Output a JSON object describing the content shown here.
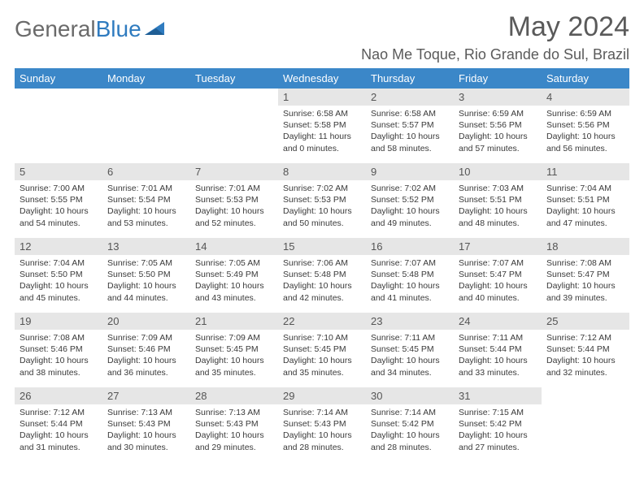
{
  "logo": {
    "text_gray": "General",
    "text_blue": "Blue"
  },
  "title": "May 2024",
  "location": "Nao Me Toque, Rio Grande do Sul, Brazil",
  "colors": {
    "header_bg": "#3b87c8",
    "header_fg": "#ffffff",
    "daynum_bg": "#e6e6e6",
    "text": "#3a3a3a",
    "logo_gray": "#6a6a6a",
    "logo_blue": "#2f7bbf",
    "page_bg": "#ffffff"
  },
  "day_headers": [
    "Sunday",
    "Monday",
    "Tuesday",
    "Wednesday",
    "Thursday",
    "Friday",
    "Saturday"
  ],
  "weeks": [
    [
      {
        "n": "",
        "sunrise": "",
        "sunset": "",
        "daylight": ""
      },
      {
        "n": "",
        "sunrise": "",
        "sunset": "",
        "daylight": ""
      },
      {
        "n": "",
        "sunrise": "",
        "sunset": "",
        "daylight": ""
      },
      {
        "n": "1",
        "sunrise": "Sunrise: 6:58 AM",
        "sunset": "Sunset: 5:58 PM",
        "daylight": "Daylight: 11 hours and 0 minutes."
      },
      {
        "n": "2",
        "sunrise": "Sunrise: 6:58 AM",
        "sunset": "Sunset: 5:57 PM",
        "daylight": "Daylight: 10 hours and 58 minutes."
      },
      {
        "n": "3",
        "sunrise": "Sunrise: 6:59 AM",
        "sunset": "Sunset: 5:56 PM",
        "daylight": "Daylight: 10 hours and 57 minutes."
      },
      {
        "n": "4",
        "sunrise": "Sunrise: 6:59 AM",
        "sunset": "Sunset: 5:56 PM",
        "daylight": "Daylight: 10 hours and 56 minutes."
      }
    ],
    [
      {
        "n": "5",
        "sunrise": "Sunrise: 7:00 AM",
        "sunset": "Sunset: 5:55 PM",
        "daylight": "Daylight: 10 hours and 54 minutes."
      },
      {
        "n": "6",
        "sunrise": "Sunrise: 7:01 AM",
        "sunset": "Sunset: 5:54 PM",
        "daylight": "Daylight: 10 hours and 53 minutes."
      },
      {
        "n": "7",
        "sunrise": "Sunrise: 7:01 AM",
        "sunset": "Sunset: 5:53 PM",
        "daylight": "Daylight: 10 hours and 52 minutes."
      },
      {
        "n": "8",
        "sunrise": "Sunrise: 7:02 AM",
        "sunset": "Sunset: 5:53 PM",
        "daylight": "Daylight: 10 hours and 50 minutes."
      },
      {
        "n": "9",
        "sunrise": "Sunrise: 7:02 AM",
        "sunset": "Sunset: 5:52 PM",
        "daylight": "Daylight: 10 hours and 49 minutes."
      },
      {
        "n": "10",
        "sunrise": "Sunrise: 7:03 AM",
        "sunset": "Sunset: 5:51 PM",
        "daylight": "Daylight: 10 hours and 48 minutes."
      },
      {
        "n": "11",
        "sunrise": "Sunrise: 7:04 AM",
        "sunset": "Sunset: 5:51 PM",
        "daylight": "Daylight: 10 hours and 47 minutes."
      }
    ],
    [
      {
        "n": "12",
        "sunrise": "Sunrise: 7:04 AM",
        "sunset": "Sunset: 5:50 PM",
        "daylight": "Daylight: 10 hours and 45 minutes."
      },
      {
        "n": "13",
        "sunrise": "Sunrise: 7:05 AM",
        "sunset": "Sunset: 5:50 PM",
        "daylight": "Daylight: 10 hours and 44 minutes."
      },
      {
        "n": "14",
        "sunrise": "Sunrise: 7:05 AM",
        "sunset": "Sunset: 5:49 PM",
        "daylight": "Daylight: 10 hours and 43 minutes."
      },
      {
        "n": "15",
        "sunrise": "Sunrise: 7:06 AM",
        "sunset": "Sunset: 5:48 PM",
        "daylight": "Daylight: 10 hours and 42 minutes."
      },
      {
        "n": "16",
        "sunrise": "Sunrise: 7:07 AM",
        "sunset": "Sunset: 5:48 PM",
        "daylight": "Daylight: 10 hours and 41 minutes."
      },
      {
        "n": "17",
        "sunrise": "Sunrise: 7:07 AM",
        "sunset": "Sunset: 5:47 PM",
        "daylight": "Daylight: 10 hours and 40 minutes."
      },
      {
        "n": "18",
        "sunrise": "Sunrise: 7:08 AM",
        "sunset": "Sunset: 5:47 PM",
        "daylight": "Daylight: 10 hours and 39 minutes."
      }
    ],
    [
      {
        "n": "19",
        "sunrise": "Sunrise: 7:08 AM",
        "sunset": "Sunset: 5:46 PM",
        "daylight": "Daylight: 10 hours and 38 minutes."
      },
      {
        "n": "20",
        "sunrise": "Sunrise: 7:09 AM",
        "sunset": "Sunset: 5:46 PM",
        "daylight": "Daylight: 10 hours and 36 minutes."
      },
      {
        "n": "21",
        "sunrise": "Sunrise: 7:09 AM",
        "sunset": "Sunset: 5:45 PM",
        "daylight": "Daylight: 10 hours and 35 minutes."
      },
      {
        "n": "22",
        "sunrise": "Sunrise: 7:10 AM",
        "sunset": "Sunset: 5:45 PM",
        "daylight": "Daylight: 10 hours and 35 minutes."
      },
      {
        "n": "23",
        "sunrise": "Sunrise: 7:11 AM",
        "sunset": "Sunset: 5:45 PM",
        "daylight": "Daylight: 10 hours and 34 minutes."
      },
      {
        "n": "24",
        "sunrise": "Sunrise: 7:11 AM",
        "sunset": "Sunset: 5:44 PM",
        "daylight": "Daylight: 10 hours and 33 minutes."
      },
      {
        "n": "25",
        "sunrise": "Sunrise: 7:12 AM",
        "sunset": "Sunset: 5:44 PM",
        "daylight": "Daylight: 10 hours and 32 minutes."
      }
    ],
    [
      {
        "n": "26",
        "sunrise": "Sunrise: 7:12 AM",
        "sunset": "Sunset: 5:44 PM",
        "daylight": "Daylight: 10 hours and 31 minutes."
      },
      {
        "n": "27",
        "sunrise": "Sunrise: 7:13 AM",
        "sunset": "Sunset: 5:43 PM",
        "daylight": "Daylight: 10 hours and 30 minutes."
      },
      {
        "n": "28",
        "sunrise": "Sunrise: 7:13 AM",
        "sunset": "Sunset: 5:43 PM",
        "daylight": "Daylight: 10 hours and 29 minutes."
      },
      {
        "n": "29",
        "sunrise": "Sunrise: 7:14 AM",
        "sunset": "Sunset: 5:43 PM",
        "daylight": "Daylight: 10 hours and 28 minutes."
      },
      {
        "n": "30",
        "sunrise": "Sunrise: 7:14 AM",
        "sunset": "Sunset: 5:42 PM",
        "daylight": "Daylight: 10 hours and 28 minutes."
      },
      {
        "n": "31",
        "sunrise": "Sunrise: 7:15 AM",
        "sunset": "Sunset: 5:42 PM",
        "daylight": "Daylight: 10 hours and 27 minutes."
      },
      {
        "n": "",
        "sunrise": "",
        "sunset": "",
        "daylight": ""
      }
    ]
  ]
}
